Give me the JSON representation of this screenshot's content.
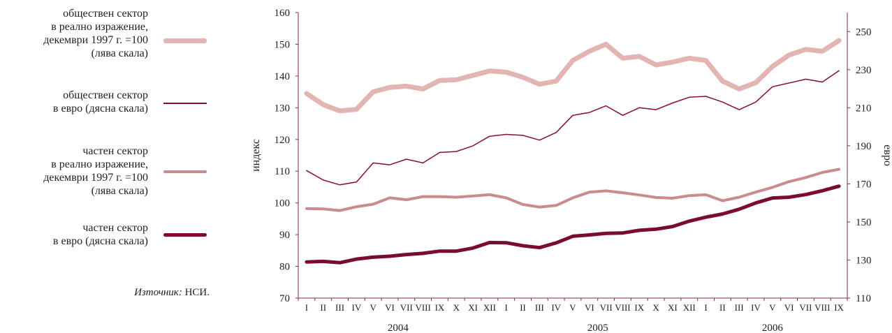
{
  "legend": {
    "items": [
      {
        "text": "обществен сектор\nв реално изражение,\nдекември 1997 г. =100\n(лява скала)",
        "color": "#e2b5b3",
        "width": 7
      },
      {
        "text": "обществен сектор\nв евро (дясна скала)",
        "color": "#8b0a38",
        "width": 1.5
      },
      {
        "text": "частен сектор\nв реално изражение,\nдекември 1997 г. =100\n(лява скала)",
        "color": "#c98b8d",
        "width": 4
      },
      {
        "text": "частен сектор\nв евро (дясна скала)",
        "color": "#7a0c2e",
        "width": 5
      }
    ]
  },
  "source": {
    "label": "Източник:",
    "value": "НСИ."
  },
  "chart_data": {
    "type": "line",
    "categories": [
      "I",
      "II",
      "III",
      "IV",
      "V",
      "VI",
      "VII",
      "VIII",
      "IX",
      "X",
      "XI",
      "XII",
      "I",
      "II",
      "III",
      "IV",
      "V",
      "VI",
      "VII",
      "VIII",
      "IX",
      "X",
      "XI",
      "XII",
      "I",
      "II",
      "III",
      "IV",
      "V",
      "VI",
      "VII",
      "VIII",
      "IX"
    ],
    "years": [
      {
        "label": "2004",
        "start": 0,
        "end": 11
      },
      {
        "label": "2005",
        "start": 12,
        "end": 23
      },
      {
        "label": "2006",
        "start": 24,
        "end": 32
      }
    ],
    "ylabel_left": "индекс",
    "ylabel_right": "евро",
    "ylim_left": [
      70,
      160
    ],
    "yticks_left": [
      70,
      80,
      90,
      100,
      110,
      120,
      130,
      140,
      150,
      160
    ],
    "ylim_right": [
      110,
      260
    ],
    "yticks_right": [
      110,
      130,
      150,
      170,
      190,
      210,
      230,
      250
    ],
    "grid": false,
    "series": [
      {
        "name": "обществен сектор в реално изражение, декември 1997 г. =100 (лява скала)",
        "axis": "left",
        "color": "#e2b5b3",
        "width": 7,
        "values": [
          134.5,
          131,
          129,
          129.5,
          135,
          136.4,
          136.8,
          135.9,
          138.6,
          138.8,
          140.2,
          141.6,
          141.2,
          139.6,
          137.4,
          138.4,
          144.9,
          147.8,
          150,
          145.6,
          146.2,
          143.5,
          144.4,
          145.6,
          144.9,
          138.4,
          135.9,
          137.9,
          143,
          146.6,
          148.4,
          147.8,
          151.2
        ]
      },
      {
        "name": "обществен сектор в евро (дясна скала)",
        "axis": "right",
        "color": "#8b0a38",
        "width": 1.5,
        "values": [
          177,
          172,
          169.5,
          171,
          181,
          180,
          183,
          181,
          186.5,
          187,
          190,
          195,
          196,
          195.5,
          193,
          197,
          206,
          207.5,
          211,
          206,
          210,
          209,
          212.5,
          215.5,
          216,
          213,
          209,
          213,
          221,
          223,
          225,
          223.5,
          229.5
        ]
      },
      {
        "name": "частен сектор в реално изражение, декември 1997 г. =100 (лява скала)",
        "axis": "left",
        "color": "#c98b8d",
        "width": 4,
        "values": [
          98.2,
          98.1,
          97.6,
          98.8,
          99.6,
          101.6,
          101,
          102,
          102,
          101.8,
          102.2,
          102.6,
          101.6,
          99.5,
          98.7,
          99.2,
          101.6,
          103.4,
          103.8,
          103.2,
          102.5,
          101.7,
          101.5,
          102.3,
          102.6,
          100.7,
          101.8,
          103.4,
          104.9,
          106.7,
          108,
          109.6,
          110.6
        ]
      },
      {
        "name": "частен сектор в евро (дясна скала)",
        "axis": "right",
        "color": "#7a0c2e",
        "width": 5,
        "values": [
          129,
          129.3,
          128.6,
          130.5,
          131.5,
          132,
          132.9,
          133.5,
          134.7,
          134.7,
          136.3,
          139.2,
          139.1,
          137.5,
          136.5,
          139,
          142.5,
          143.2,
          144,
          144.2,
          145.6,
          146.2,
          147.6,
          150.4,
          152.5,
          154.2,
          156.7,
          160,
          162.6,
          163,
          164.4,
          166.4,
          168.8
        ]
      }
    ]
  }
}
